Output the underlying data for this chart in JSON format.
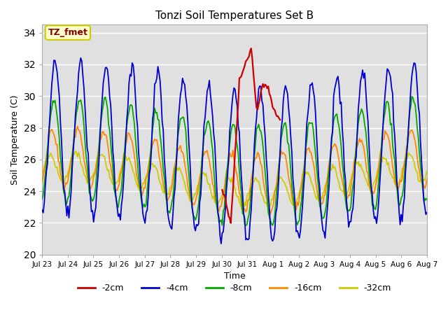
{
  "title": "Tonzi Soil Temperatures Set B",
  "xlabel": "Time",
  "ylabel": "Soil Temperature (C)",
  "ylim": [
    20,
    34.5
  ],
  "yticks": [
    20,
    22,
    24,
    26,
    28,
    30,
    32,
    34
  ],
  "bg_color": "#e0e0e0",
  "annotation_text": "TZ_fmet",
  "annotation_bg": "#ffffcc",
  "annotation_border": "#cccc00",
  "annotation_fg": "#880000",
  "series_colors": {
    "-2cm": "#cc0000",
    "-4cm": "#0000cc",
    "-8cm": "#00aa00",
    "-16cm": "#ff8800",
    "-32cm": "#cccc00"
  },
  "xtick_labels": [
    "Jul 23",
    "Jul 24",
    "Jul 25",
    "Jul 26",
    "Jul 27",
    "Jul 28",
    "Jul 29",
    "Jul 30",
    "Jul 31",
    "Aug 1",
    "Aug 2",
    "Aug 3",
    "Aug 4",
    "Aug 5",
    "Aug 6",
    "Aug 7"
  ]
}
